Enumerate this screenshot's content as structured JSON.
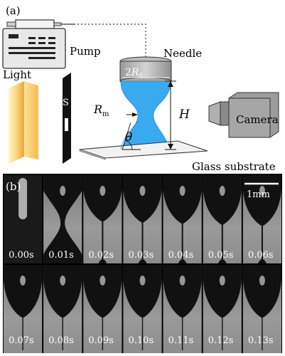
{
  "panel_a": {
    "label": "(a)",
    "pump_label": "Pump",
    "needle_label": "Needle",
    "diameter_label_prefix": "2",
    "diameter_label_symbol": "R",
    "diameter_label_sub": "0",
    "light_label": "Light",
    "slit_label": "S",
    "neck_radius_symbol": "R",
    "neck_radius_sub": "m",
    "height_label": "H",
    "angle_label": "θ",
    "camera_label": "Camera",
    "substrate_label": "Glass substrate"
  },
  "panel_b": {
    "label": "(b)",
    "scale_bar_label": "1mm",
    "frames_row1": [
      "0.00s",
      "0.01s",
      "0.02s",
      "0.03s",
      "0.04s",
      "0.05s",
      "0.06s"
    ],
    "frames_row2": [
      "0.07s",
      "0.08s",
      "0.09s",
      "0.10s",
      "0.11s",
      "0.12s",
      "0.13s"
    ]
  },
  "colors": {
    "liquid": "#3aaaf0",
    "light_bright": "#fff1b0",
    "light_dark": "#f2b640",
    "frame_bg": "#8a8a8a",
    "drop": "#111111"
  }
}
